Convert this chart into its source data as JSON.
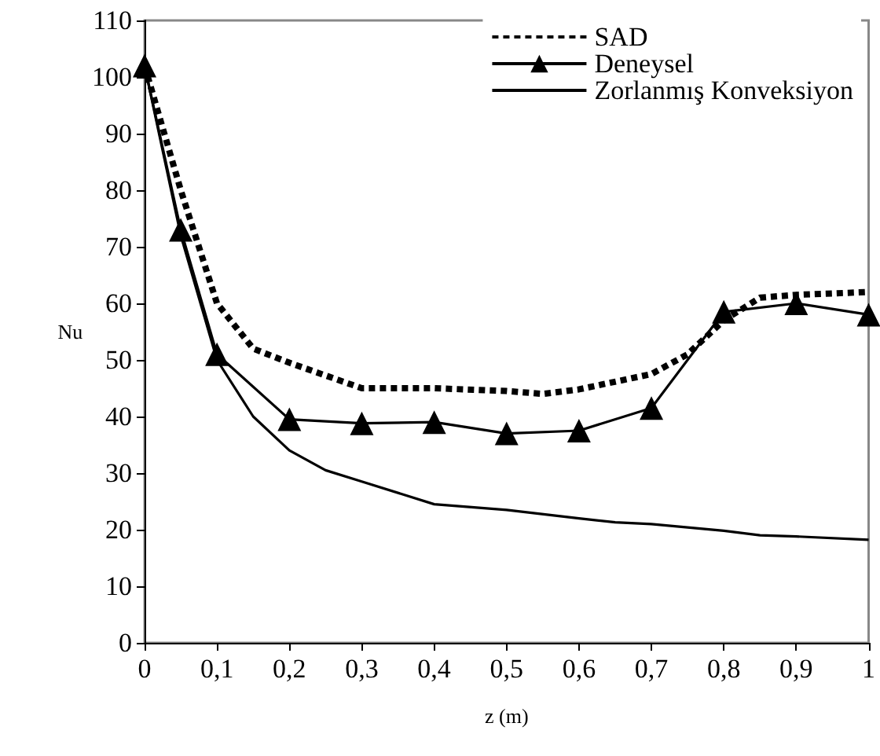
{
  "chart_data": {
    "type": "line",
    "xlabel": "z (m)",
    "ylabel": "Nu",
    "xlim": [
      0,
      1
    ],
    "xticks": [
      0,
      {
        "value": 0.1,
        "label": "0,1"
      },
      {
        "value": 0.2,
        "label": "0,2"
      },
      {
        "value": 0.3,
        "label": "0,3"
      },
      {
        "value": 0.4,
        "label": "0,4"
      },
      {
        "value": 0.5,
        "label": "0,5"
      },
      {
        "value": 0.6,
        "label": "0,6"
      },
      {
        "value": 0.7,
        "label": "0,7"
      },
      {
        "value": 0.8,
        "label": "0,8"
      },
      {
        "value": 0.9,
        "label": "0,9"
      },
      1
    ],
    "ylim": [
      0,
      110
    ],
    "yticks": [
      0,
      10,
      20,
      30,
      40,
      50,
      60,
      70,
      80,
      90,
      100,
      110
    ],
    "grid": false,
    "legend": "top right",
    "series": [
      {
        "name": "SAD",
        "color": "#000000",
        "line_style": "dashed",
        "marker": "none",
        "x": [
          0,
          0.05,
          0.1,
          0.15,
          0.2,
          0.3,
          0.4,
          0.5,
          0.55,
          0.6,
          0.7,
          0.75,
          0.8,
          0.85,
          0.9,
          1
        ],
        "values": [
          102,
          80,
          60,
          52,
          49.5,
          45,
          45,
          44.5,
          44,
          44.8,
          47.5,
          51,
          57,
          61,
          61.5,
          62
        ]
      },
      {
        "name": "Deneysel",
        "color": "#000000",
        "line_style": "solid",
        "marker": "triangle",
        "x": [
          0,
          0.05,
          0.1,
          0.2,
          0.3,
          0.4,
          0.5,
          0.6,
          0.7,
          0.8,
          0.9,
          1
        ],
        "values": [
          102,
          73,
          51,
          39.5,
          38.8,
          39,
          37,
          37.5,
          41.5,
          58.5,
          60,
          58
        ]
      },
      {
        "name": "Zorlanmış Konveksiyon",
        "color": "#000000",
        "line_style": "solid",
        "marker": "none",
        "x": [
          0,
          0.05,
          0.1,
          0.15,
          0.2,
          0.25,
          0.3,
          0.4,
          0.5,
          0.6,
          0.65,
          0.7,
          0.8,
          0.85,
          0.9,
          1
        ],
        "values": [
          102,
          72,
          50,
          40,
          34,
          30.5,
          28.5,
          24.5,
          23.5,
          22,
          21.3,
          21,
          19.8,
          19,
          18.8,
          18.2
        ]
      }
    ]
  }
}
